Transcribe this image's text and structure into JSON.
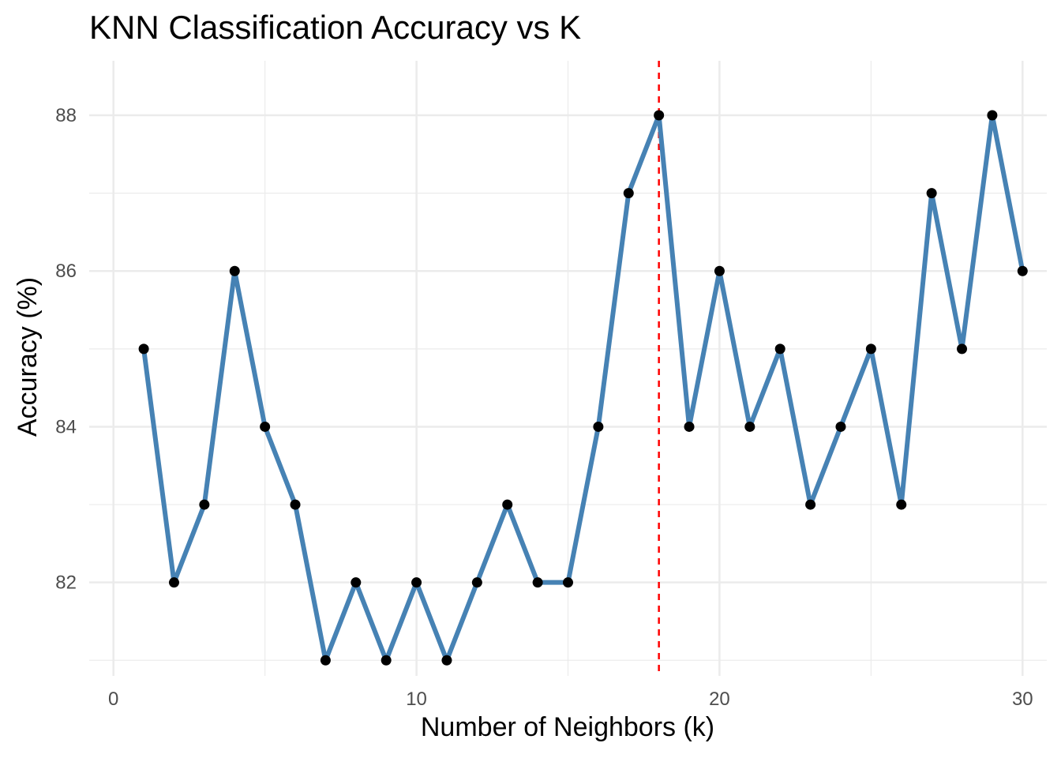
{
  "chart_data": {
    "type": "line",
    "title": "KNN Classification Accuracy vs K",
    "xlabel": "Number of Neighbors (k)",
    "ylabel": "Accuracy (%)",
    "xlim": [
      -0.8,
      30.8
    ],
    "ylim": [
      80.8,
      88.7
    ],
    "x_ticks": [
      0,
      10,
      20,
      30
    ],
    "x_minor_ticks": [
      5,
      15,
      25
    ],
    "y_ticks": [
      82,
      84,
      86,
      88
    ],
    "y_minor_ticks": [
      81,
      83,
      85,
      87
    ],
    "grid": true,
    "series": [
      {
        "x": [
          1,
          2,
          3,
          4,
          5,
          6,
          7,
          8,
          9,
          10,
          11,
          12,
          13,
          14,
          15,
          16,
          17,
          18,
          19,
          20,
          21,
          22,
          23,
          24,
          25,
          26,
          27,
          28,
          29,
          30
        ],
        "y": [
          85,
          82,
          83,
          86,
          84,
          83,
          81,
          82,
          81,
          82,
          81,
          82,
          83,
          82,
          82,
          84,
          87,
          88,
          84,
          86,
          84,
          85,
          83,
          84,
          85,
          83,
          87,
          85,
          88,
          86
        ]
      }
    ],
    "reference_line": {
      "orientation": "vertical",
      "x": 18,
      "style": "dashed"
    },
    "colors": {
      "line": "#4682b4",
      "points": "#000000",
      "reference_line": "#ff0000",
      "grid": "#ebebeb"
    }
  }
}
